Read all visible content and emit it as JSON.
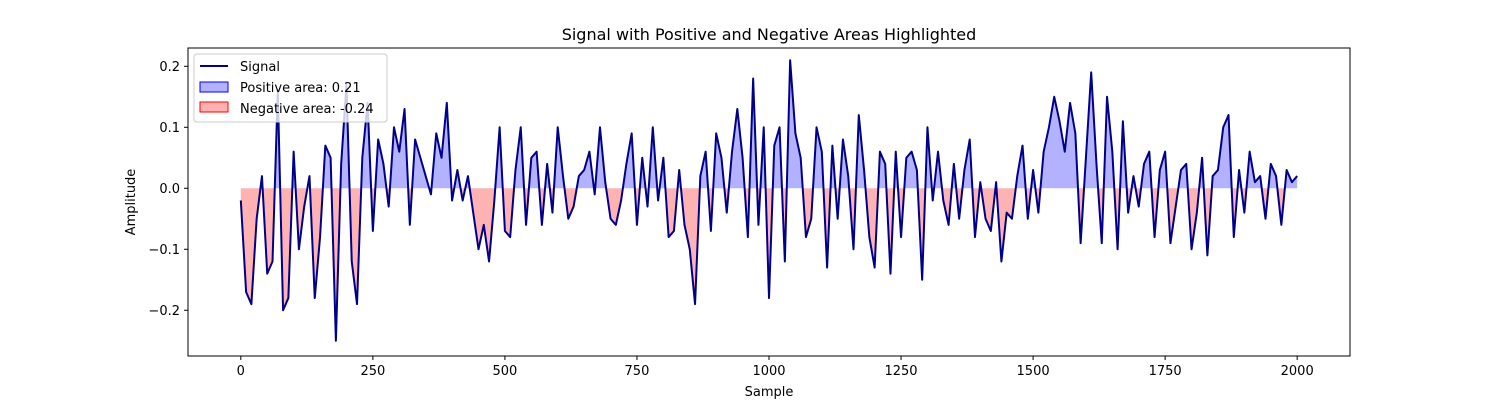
{
  "chart_data": {
    "type": "line",
    "title": "Signal with Positive and Negative Areas Highlighted",
    "xlabel": "Sample",
    "ylabel": "Amplitude",
    "xlim": [
      -100,
      2100
    ],
    "ylim": [
      -0.275,
      0.23
    ],
    "xticks": [
      0,
      250,
      500,
      750,
      1000,
      1250,
      1500,
      1750,
      2000
    ],
    "yticks": [
      -0.2,
      -0.1,
      0.0,
      0.1,
      0.2
    ],
    "ytick_labels": [
      "−0.2",
      "−0.1",
      "0.0",
      "0.1",
      "0.2"
    ],
    "grid": false,
    "legend_position": "upper-left",
    "legend": [
      {
        "label": "Signal",
        "kind": "line",
        "color": "#00008b"
      },
      {
        "label": "Positive area: 0.21",
        "kind": "patch",
        "color": "#0000ff"
      },
      {
        "label": "Negative area: -0.24",
        "kind": "patch",
        "color": "#ff0000"
      }
    ],
    "series": [
      {
        "name": "Signal",
        "color": "#00008b",
        "x": [
          0,
          10,
          20,
          30,
          40,
          50,
          60,
          70,
          80,
          90,
          100,
          110,
          120,
          130,
          140,
          150,
          160,
          170,
          180,
          190,
          200,
          210,
          220,
          230,
          240,
          250,
          260,
          270,
          280,
          290,
          300,
          310,
          320,
          330,
          340,
          350,
          360,
          370,
          380,
          390,
          400,
          410,
          420,
          430,
          440,
          450,
          460,
          470,
          480,
          490,
          500,
          510,
          520,
          530,
          540,
          550,
          560,
          570,
          580,
          590,
          600,
          610,
          620,
          630,
          640,
          650,
          660,
          670,
          680,
          690,
          700,
          710,
          720,
          730,
          740,
          750,
          760,
          770,
          780,
          790,
          800,
          810,
          820,
          830,
          840,
          850,
          860,
          870,
          880,
          890,
          900,
          910,
          920,
          930,
          940,
          950,
          960,
          970,
          980,
          990,
          1000,
          1010,
          1020,
          1030,
          1040,
          1050,
          1060,
          1070,
          1080,
          1090,
          1100,
          1110,
          1120,
          1130,
          1140,
          1150,
          1160,
          1170,
          1180,
          1190,
          1200,
          1210,
          1220,
          1230,
          1240,
          1250,
          1260,
          1270,
          1280,
          1290,
          1300,
          1310,
          1320,
          1330,
          1340,
          1350,
          1360,
          1370,
          1380,
          1390,
          1400,
          1410,
          1420,
          1430,
          1440,
          1450,
          1460,
          1470,
          1480,
          1490,
          1500,
          1510,
          1520,
          1530,
          1540,
          1550,
          1560,
          1570,
          1580,
          1590,
          1600,
          1610,
          1620,
          1630,
          1640,
          1650,
          1660,
          1670,
          1680,
          1690,
          1700,
          1710,
          1720,
          1730,
          1740,
          1750,
          1760,
          1770,
          1780,
          1790,
          1800,
          1810,
          1820,
          1830,
          1840,
          1850,
          1860,
          1870,
          1880,
          1890,
          1900,
          1910,
          1920,
          1930,
          1940,
          1950,
          1960,
          1970,
          1980,
          1990,
          2000
        ],
        "y": [
          -0.02,
          -0.17,
          -0.19,
          -0.05,
          0.02,
          -0.14,
          -0.12,
          0.16,
          -0.2,
          -0.18,
          0.06,
          -0.1,
          -0.03,
          0.02,
          -0.18,
          -0.08,
          0.07,
          0.05,
          -0.25,
          0.04,
          0.17,
          -0.12,
          -0.19,
          0.05,
          0.14,
          -0.07,
          0.08,
          0.04,
          -0.03,
          0.1,
          0.06,
          0.13,
          -0.06,
          0.08,
          0.05,
          0.02,
          -0.01,
          0.09,
          0.05,
          0.14,
          -0.02,
          0.03,
          -0.02,
          0.02,
          -0.04,
          -0.1,
          -0.06,
          -0.12,
          -0.02,
          0.1,
          -0.07,
          -0.08,
          0.03,
          0.1,
          -0.06,
          0.05,
          0.06,
          -0.06,
          0.04,
          -0.04,
          0.1,
          0.02,
          -0.05,
          -0.03,
          0.02,
          0.03,
          0.06,
          -0.01,
          0.1,
          0.01,
          -0.05,
          -0.06,
          -0.02,
          0.04,
          0.09,
          -0.06,
          0.05,
          -0.03,
          0.1,
          -0.02,
          0.05,
          -0.08,
          -0.07,
          0.03,
          -0.06,
          -0.1,
          -0.19,
          0.02,
          0.06,
          -0.07,
          0.09,
          0.05,
          -0.04,
          0.06,
          0.13,
          0.05,
          -0.08,
          0.18,
          -0.06,
          0.1,
          -0.18,
          0.07,
          0.1,
          -0.12,
          0.21,
          0.09,
          0.05,
          -0.08,
          -0.05,
          0.1,
          0.06,
          -0.13,
          0.07,
          -0.05,
          0.08,
          0.02,
          -0.1,
          0.12,
          0.03,
          -0.08,
          -0.13,
          0.06,
          0.04,
          -0.14,
          0.06,
          -0.08,
          0.05,
          0.06,
          0.03,
          -0.15,
          0.1,
          -0.02,
          0.06,
          -0.02,
          -0.06,
          0.04,
          -0.05,
          0.03,
          0.08,
          -0.08,
          0.01,
          -0.05,
          -0.07,
          0.01,
          -0.12,
          -0.04,
          -0.05,
          0.02,
          0.07,
          -0.05,
          0.03,
          -0.04,
          0.06,
          0.1,
          0.15,
          0.11,
          0.06,
          0.14,
          0.09,
          -0.09,
          0.05,
          0.19,
          0.04,
          -0.09,
          0.15,
          0.06,
          -0.1,
          0.11,
          -0.04,
          0.02,
          -0.03,
          0.04,
          0.06,
          -0.08,
          0.03,
          0.06,
          -0.09,
          -0.03,
          0.03,
          0.04,
          -0.1,
          -0.04,
          0.05,
          -0.11,
          0.02,
          0.03,
          0.1,
          0.12,
          -0.08,
          0.03,
          -0.04,
          0.06,
          0.01,
          0.02,
          -0.05,
          0.04,
          0.02,
          -0.06,
          0.03,
          0.01,
          0.02
        ]
      }
    ]
  }
}
